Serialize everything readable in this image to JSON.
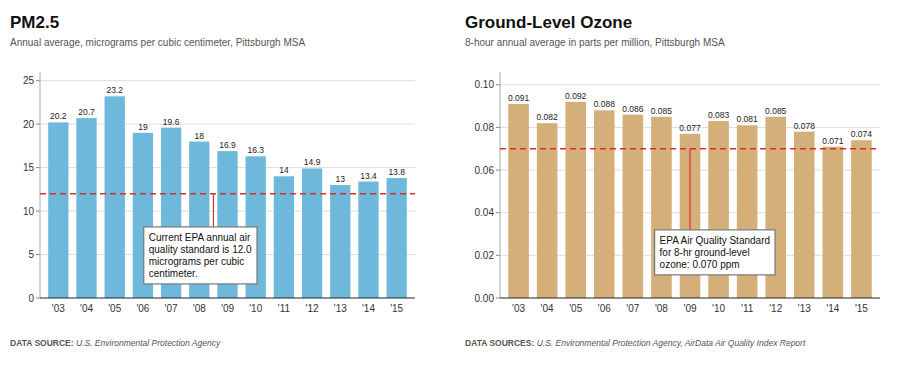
{
  "chart_data": [
    {
      "type": "bar",
      "title": "PM2.5",
      "subtitle": "Annual average, micrograms per cubic centimeter, Pittsburgh MSA",
      "categories": [
        "'03",
        "'04",
        "'05",
        "'06",
        "'07",
        "'08",
        "'09",
        "'10",
        "'11",
        "'12",
        "'13",
        "'14",
        "'15"
      ],
      "values": [
        20.2,
        20.7,
        23.2,
        19.0,
        19.6,
        18.0,
        16.9,
        16.3,
        14.0,
        14.9,
        13.0,
        13.4,
        13.8
      ],
      "color": "#6eb8dc",
      "data_labels": true,
      "grid": true,
      "ylim": [
        0,
        26
      ],
      "yticks": [
        0,
        5,
        10,
        15,
        20,
        25
      ],
      "standard_line": 12.0,
      "standard_line_color": "#d93025",
      "annotation": "Current EPA annual air\nquality standard is 12.0\nmicrograms per cubic\ncentimeter.",
      "source_label": "DATA SOURCE:",
      "source": "  U.S. Environmental Protection Agency"
    },
    {
      "type": "bar",
      "title": "Ground-Level Ozone",
      "subtitle": "8-hour annual average in parts per million, Pittsburgh MSA",
      "categories": [
        "'03",
        "'04",
        "'05",
        "'06",
        "'07",
        "'08",
        "'09",
        "'10",
        "'11",
        "'12",
        "'13",
        "'14",
        "'15"
      ],
      "values": [
        0.091,
        0.082,
        0.092,
        0.088,
        0.086,
        0.085,
        0.077,
        0.083,
        0.081,
        0.085,
        0.078,
        0.071,
        0.074
      ],
      "color": "#d4af7a",
      "data_labels": true,
      "grid": true,
      "ylim": [
        0,
        0.106
      ],
      "yticks": [
        {
          "value": 0.0,
          "label": "0.00"
        },
        {
          "value": 0.02,
          "label": "0.02"
        },
        {
          "value": 0.04,
          "label": "0.04"
        },
        {
          "value": 0.06,
          "label": "0.06"
        },
        {
          "value": 0.08,
          "label": "0.08"
        },
        {
          "value": 0.1,
          "label": "0.10"
        }
      ],
      "standard_line": 0.07,
      "standard_line_color": "#d93025",
      "annotation": "EPA Air Quality Standard\nfor 8-hr ground-level\nozone: 0.070 ppm",
      "source_label": "DATA SOURCES:",
      "source": "  U.S. Environmental Protection Agency, AirData Air Quality Index Report"
    }
  ]
}
